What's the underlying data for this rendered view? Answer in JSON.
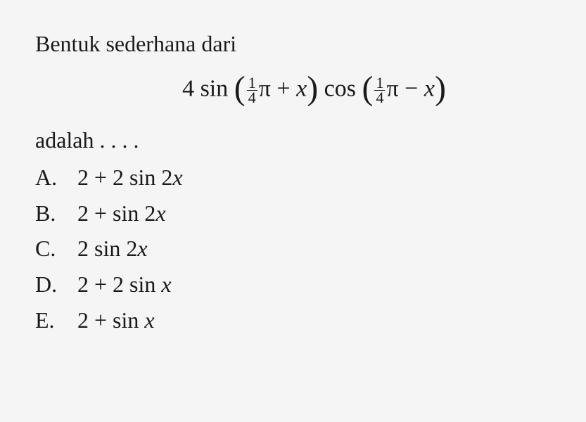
{
  "question": {
    "intro": "Bentuk sederhana dari",
    "expression": {
      "coefficient": "4",
      "func1": "sin",
      "frac1_num": "1",
      "frac1_den": "4",
      "pi1": "π",
      "op1": "+",
      "var1": "x",
      "func2": "cos",
      "frac2_num": "1",
      "frac2_den": "4",
      "pi2": "π",
      "op2": "−",
      "var2": "x"
    },
    "prompt": "adalah . . . ."
  },
  "options": [
    {
      "label": "A.",
      "prefix": "2 + 2 sin 2",
      "var": "x",
      "suffix": ""
    },
    {
      "label": "B.",
      "prefix": "2 + sin 2",
      "var": "x",
      "suffix": ""
    },
    {
      "label": "C.",
      "prefix": "2 sin 2",
      "var": "x",
      "suffix": ""
    },
    {
      "label": "D.",
      "prefix": "2 + 2 sin ",
      "var": "x",
      "suffix": ""
    },
    {
      "label": "E.",
      "prefix": "2 + sin ",
      "var": "x",
      "suffix": ""
    }
  ],
  "style": {
    "background_color": "#f5f5f5",
    "text_color": "#1a1a1a",
    "font_family": "Times New Roman",
    "base_font_size": 32,
    "expression_font_size": 34,
    "fraction_font_size": 22,
    "paren_font_size": 48
  }
}
